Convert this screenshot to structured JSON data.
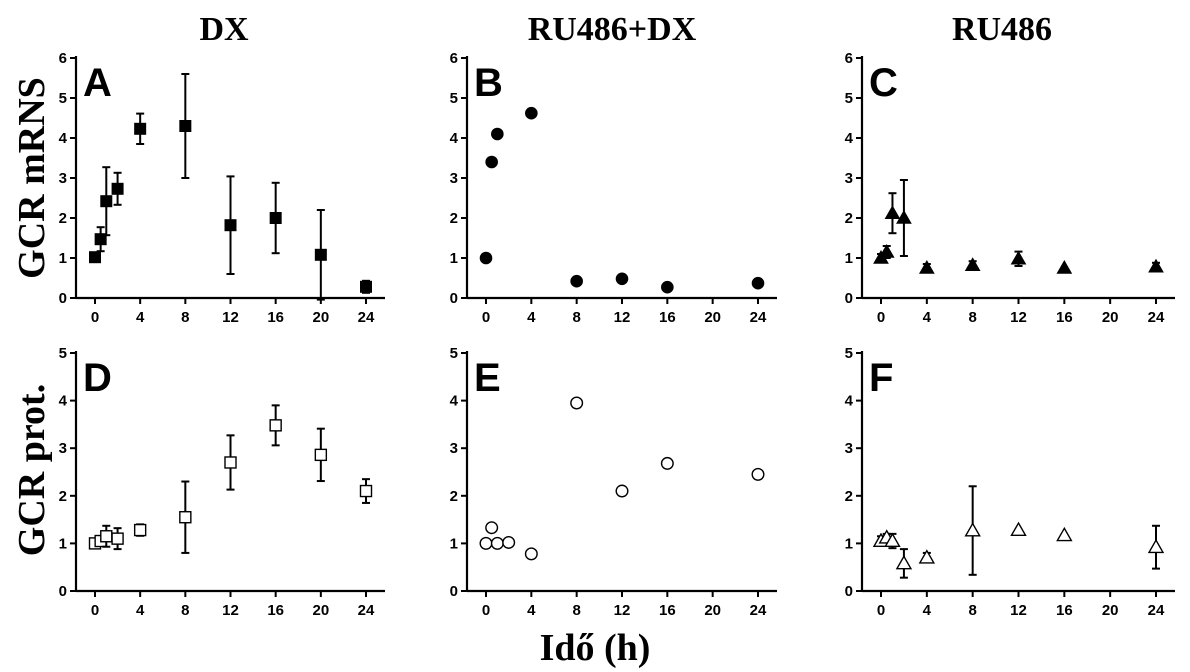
{
  "column_titles": [
    "DX",
    "RU486+DX",
    "RU486"
  ],
  "row_labels": [
    "GCR mRNS",
    "GCR prot."
  ],
  "x_axis_title": "Idő (h)",
  "chart_data": [
    {
      "panel": "A",
      "type": "scatter",
      "marker": "filled-square",
      "xlim": [
        0,
        24
      ],
      "ylim": [
        0,
        6
      ],
      "x_ticks": [
        0,
        4,
        8,
        12,
        16,
        20,
        24
      ],
      "y_ticks": [
        0,
        1,
        2,
        3,
        4,
        5,
        6
      ],
      "points": [
        {
          "x": 0,
          "y": 1.02,
          "err": 0
        },
        {
          "x": 0.5,
          "y": 1.47,
          "err": 0.3
        },
        {
          "x": 1,
          "y": 2.42,
          "err": 0.85
        },
        {
          "x": 2,
          "y": 2.73,
          "err": 0.4
        },
        {
          "x": 4,
          "y": 4.23,
          "err": 0.38
        },
        {
          "x": 8,
          "y": 4.3,
          "err": 1.3
        },
        {
          "x": 12,
          "y": 1.82,
          "err": 1.22
        },
        {
          "x": 16,
          "y": 2.0,
          "err": 0.88
        },
        {
          "x": 20,
          "y": 1.08,
          "err": 1.12
        },
        {
          "x": 24,
          "y": 0.28,
          "err": 0.15
        }
      ]
    },
    {
      "panel": "B",
      "type": "scatter",
      "marker": "filled-circle",
      "xlim": [
        0,
        24
      ],
      "ylim": [
        0,
        6
      ],
      "x_ticks": [
        0,
        4,
        8,
        12,
        16,
        20,
        24
      ],
      "y_ticks": [
        0,
        1,
        2,
        3,
        4,
        5,
        6
      ],
      "points": [
        {
          "x": 0,
          "y": 1.0,
          "err": 0
        },
        {
          "x": 0.5,
          "y": 3.4,
          "err": 0
        },
        {
          "x": 1,
          "y": 4.1,
          "err": 0
        },
        {
          "x": 4,
          "y": 4.62,
          "err": 0
        },
        {
          "x": 8,
          "y": 0.42,
          "err": 0
        },
        {
          "x": 12,
          "y": 0.48,
          "err": 0
        },
        {
          "x": 16,
          "y": 0.27,
          "err": 0
        },
        {
          "x": 24,
          "y": 0.37,
          "err": 0
        }
      ]
    },
    {
      "panel": "C",
      "type": "scatter",
      "marker": "filled-triangle",
      "xlim": [
        0,
        24
      ],
      "ylim": [
        0,
        6
      ],
      "x_ticks": [
        0,
        4,
        8,
        12,
        16,
        20,
        24
      ],
      "y_ticks": [
        0,
        1,
        2,
        3,
        4,
        5,
        6
      ],
      "points": [
        {
          "x": 0,
          "y": 1.0,
          "err": 0.1
        },
        {
          "x": 0.5,
          "y": 1.15,
          "err": 0.15
        },
        {
          "x": 1,
          "y": 2.12,
          "err": 0.5
        },
        {
          "x": 2,
          "y": 2.0,
          "err": 0.95
        },
        {
          "x": 4,
          "y": 0.75,
          "err": 0.1
        },
        {
          "x": 8,
          "y": 0.82,
          "err": 0.1
        },
        {
          "x": 12,
          "y": 0.98,
          "err": 0.18
        },
        {
          "x": 16,
          "y": 0.75,
          "err": 0
        },
        {
          "x": 24,
          "y": 0.78,
          "err": 0.1
        }
      ]
    },
    {
      "panel": "D",
      "type": "scatter",
      "marker": "open-square",
      "xlim": [
        0,
        24
      ],
      "ylim": [
        0,
        5
      ],
      "x_ticks": [
        0,
        4,
        8,
        12,
        16,
        20,
        24
      ],
      "y_ticks": [
        0,
        1,
        2,
        3,
        4,
        5
      ],
      "points": [
        {
          "x": 0,
          "y": 1.0,
          "err": 0
        },
        {
          "x": 0.5,
          "y": 1.05,
          "err": 0.1
        },
        {
          "x": 1,
          "y": 1.15,
          "err": 0.22
        },
        {
          "x": 2,
          "y": 1.1,
          "err": 0.22
        },
        {
          "x": 4,
          "y": 1.28,
          "err": 0.12
        },
        {
          "x": 8,
          "y": 1.55,
          "err": 0.75
        },
        {
          "x": 12,
          "y": 2.7,
          "err": 0.57
        },
        {
          "x": 16,
          "y": 3.48,
          "err": 0.42
        },
        {
          "x": 20,
          "y": 2.86,
          "err": 0.55
        },
        {
          "x": 24,
          "y": 2.1,
          "err": 0.25
        }
      ]
    },
    {
      "panel": "E",
      "type": "scatter",
      "marker": "open-circle",
      "xlim": [
        0,
        24
      ],
      "ylim": [
        0,
        5
      ],
      "x_ticks": [
        0,
        4,
        8,
        12,
        16,
        20,
        24
      ],
      "y_ticks": [
        0,
        1,
        2,
        3,
        4,
        5
      ],
      "points": [
        {
          "x": 0,
          "y": 1.0,
          "err": 0
        },
        {
          "x": 0.5,
          "y": 1.33,
          "err": 0
        },
        {
          "x": 1,
          "y": 1.0,
          "err": 0
        },
        {
          "x": 2,
          "y": 1.02,
          "err": 0
        },
        {
          "x": 4,
          "y": 0.78,
          "err": 0
        },
        {
          "x": 8,
          "y": 3.95,
          "err": 0
        },
        {
          "x": 12,
          "y": 2.1,
          "err": 0
        },
        {
          "x": 16,
          "y": 2.68,
          "err": 0
        },
        {
          "x": 24,
          "y": 2.45,
          "err": 0
        }
      ]
    },
    {
      "panel": "F",
      "type": "scatter",
      "marker": "open-triangle",
      "xlim": [
        0,
        24
      ],
      "ylim": [
        0,
        5
      ],
      "x_ticks": [
        0,
        4,
        8,
        12,
        16,
        20,
        24
      ],
      "y_ticks": [
        0,
        1,
        2,
        3,
        4,
        5
      ],
      "points": [
        {
          "x": 0,
          "y": 1.05,
          "err": 0.1
        },
        {
          "x": 0.5,
          "y": 1.12,
          "err": 0.08
        },
        {
          "x": 1,
          "y": 1.05,
          "err": 0.15
        },
        {
          "x": 2,
          "y": 0.58,
          "err": 0.3
        },
        {
          "x": 4,
          "y": 0.7,
          "err": 0.1
        },
        {
          "x": 8,
          "y": 1.27,
          "err": 0.93
        },
        {
          "x": 12,
          "y": 1.28,
          "err": 0
        },
        {
          "x": 16,
          "y": 1.17,
          "err": 0
        },
        {
          "x": 24,
          "y": 0.92,
          "err": 0.45
        }
      ]
    }
  ]
}
